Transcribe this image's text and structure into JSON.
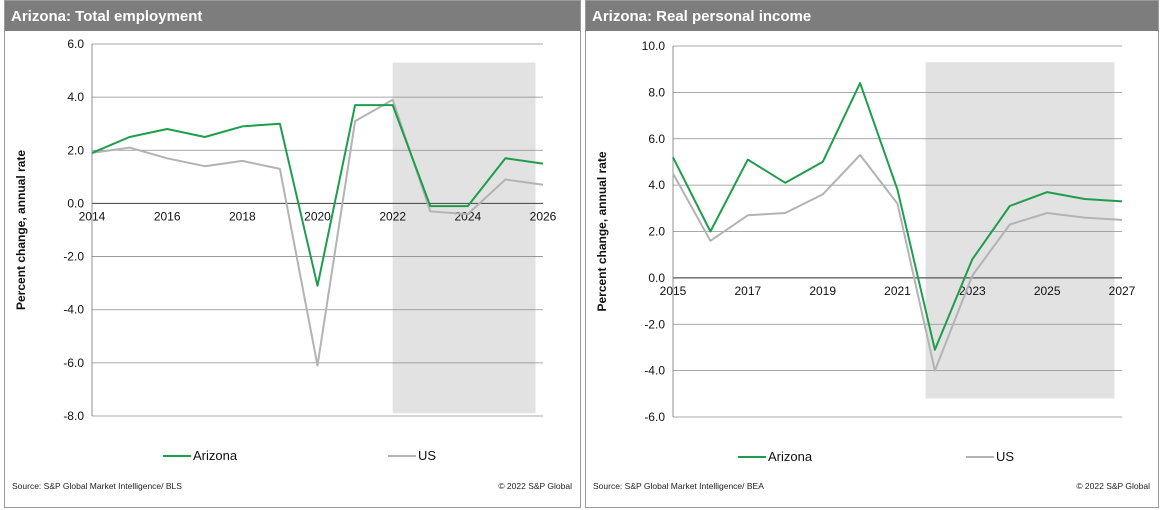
{
  "colors": {
    "header_bg": "#7d7d7d",
    "arizona": "#1e9e4a",
    "us": "#b3b3b3",
    "forecast_shade": "#e2e2e2",
    "grid": "#8c8c8c"
  },
  "panels": [
    {
      "title": "Arizona: Total employment",
      "source": "Source: S&P Global Market Intelligence/ BLS",
      "copyright": "© 2022 S&P Global"
    },
    {
      "title": "Arizona: Real personal income",
      "source": "Source: S&P Global Market Intelligence/ BEA",
      "copyright": "© 2022 S&P Global"
    }
  ],
  "chart_data": [
    {
      "type": "line",
      "title": "Arizona: Total employment",
      "ylabel": "Percent change, annual rate",
      "xlabel": "",
      "ylim": [
        -8,
        6
      ],
      "y_ticks": [
        "6.0",
        "4.0",
        "2.0",
        "0.0",
        "-2.0",
        "-4.0",
        "-6.0",
        "-8.0"
      ],
      "x_ticks": [
        "2014",
        "2016",
        "2018",
        "2020",
        "2022",
        "2024",
        "2026"
      ],
      "xlim": [
        2014,
        2026
      ],
      "forecast_shading": {
        "from": 2022,
        "to": 2025.8,
        "ymin": -7.9,
        "ymax": 5.3
      },
      "legend_position": "bottom",
      "grid": "horizontal",
      "series": [
        {
          "name": "Arizona",
          "x": [
            2014,
            2015,
            2016,
            2017,
            2018,
            2019,
            2020,
            2021,
            2022,
            2023,
            2024,
            2025,
            2026
          ],
          "values": [
            1.9,
            2.5,
            2.8,
            2.5,
            2.9,
            3.0,
            -3.1,
            3.7,
            3.7,
            -0.1,
            -0.1,
            1.7,
            1.5
          ]
        },
        {
          "name": "US",
          "x": [
            2014,
            2015,
            2016,
            2017,
            2018,
            2019,
            2020,
            2021,
            2022,
            2023,
            2024,
            2025,
            2026
          ],
          "values": [
            1.9,
            2.1,
            1.7,
            1.4,
            1.6,
            1.3,
            -6.1,
            3.1,
            3.9,
            -0.3,
            -0.4,
            0.9,
            0.7
          ]
        }
      ]
    },
    {
      "type": "line",
      "title": "Arizona: Real personal income",
      "ylabel": "Percent change, annual rate",
      "xlabel": "",
      "ylim": [
        -6,
        10
      ],
      "y_ticks": [
        "10.0",
        "8.0",
        "6.0",
        "4.0",
        "2.0",
        "0.0",
        "-2.0",
        "-4.0",
        "-6.0"
      ],
      "x_ticks": [
        "2015",
        "2017",
        "2019",
        "2021",
        "2023",
        "2025",
        "2027"
      ],
      "xlim": [
        2015,
        2027
      ],
      "forecast_shading": {
        "from": 2021.75,
        "to": 2026.8,
        "ymin": -5.2,
        "ymax": 9.3
      },
      "legend_position": "bottom",
      "grid": "horizontal",
      "series": [
        {
          "name": "Arizona",
          "x": [
            2015,
            2016,
            2017,
            2018,
            2019,
            2020,
            2021,
            2022,
            2023,
            2024,
            2025,
            2026,
            2027
          ],
          "values": [
            5.2,
            2.0,
            5.1,
            4.1,
            5.0,
            8.4,
            3.8,
            -3.1,
            0.8,
            3.1,
            3.7,
            3.4,
            3.3
          ]
        },
        {
          "name": "US",
          "x": [
            2015,
            2016,
            2017,
            2018,
            2019,
            2020,
            2021,
            2022,
            2023,
            2024,
            2025,
            2026,
            2027
          ],
          "values": [
            4.5,
            1.6,
            2.7,
            2.8,
            3.6,
            5.3,
            3.2,
            -4.0,
            0.1,
            2.3,
            2.8,
            2.6,
            2.5
          ]
        }
      ]
    }
  ]
}
